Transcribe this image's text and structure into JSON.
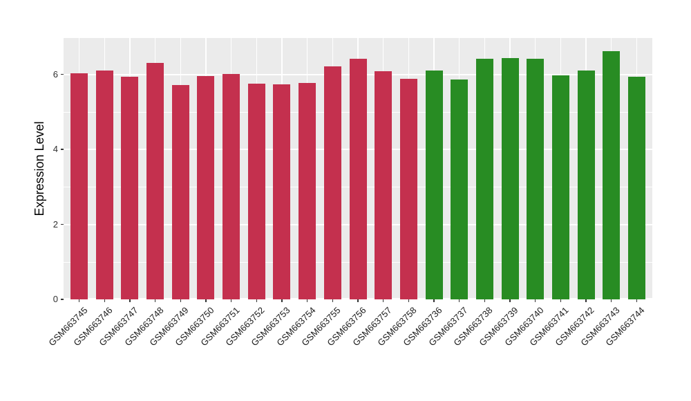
{
  "chart_data": {
    "type": "bar",
    "title": "",
    "xlabel": "",
    "ylabel": "Expression Level",
    "ylim": [
      0,
      6.97
    ],
    "yticks": [
      0,
      2,
      4,
      6
    ],
    "yminor": [
      1,
      3,
      5
    ],
    "grid": true,
    "legend_position": "none",
    "panel_background": "#EBEBEB",
    "gridline_color": "#FFFFFF",
    "tick_color": "#333333",
    "axis_text_color": "#1a1a1a",
    "categories": [
      "GSM663745",
      "GSM663746",
      "GSM663747",
      "GSM663748",
      "GSM663749",
      "GSM663750",
      "GSM663751",
      "GSM663752",
      "GSM663753",
      "GSM663754",
      "GSM663755",
      "GSM663756",
      "GSM663757",
      "GSM663758",
      "GSM663736",
      "GSM663737",
      "GSM663738",
      "GSM663739",
      "GSM663740",
      "GSM663741",
      "GSM663742",
      "GSM663743",
      "GSM663744"
    ],
    "values": [
      6.03,
      6.11,
      5.93,
      6.3,
      5.72,
      5.95,
      6.02,
      5.76,
      5.74,
      5.77,
      6.22,
      6.41,
      6.08,
      5.88,
      6.11,
      5.87,
      6.41,
      6.44,
      6.41,
      5.98,
      6.1,
      6.62,
      5.93
    ],
    "colors": [
      "#C4304E",
      "#C4304E",
      "#C4304E",
      "#C4304E",
      "#C4304E",
      "#C4304E",
      "#C4304E",
      "#C4304E",
      "#C4304E",
      "#C4304E",
      "#C4304E",
      "#C4304E",
      "#C4304E",
      "#C4304E",
      "#288C23",
      "#288C23",
      "#288C23",
      "#288C23",
      "#288C23",
      "#288C23",
      "#288C23",
      "#288C23",
      "#288C23"
    ],
    "group_colors": {
      "red_group": "#C4304E",
      "green_group": "#288C23"
    }
  }
}
